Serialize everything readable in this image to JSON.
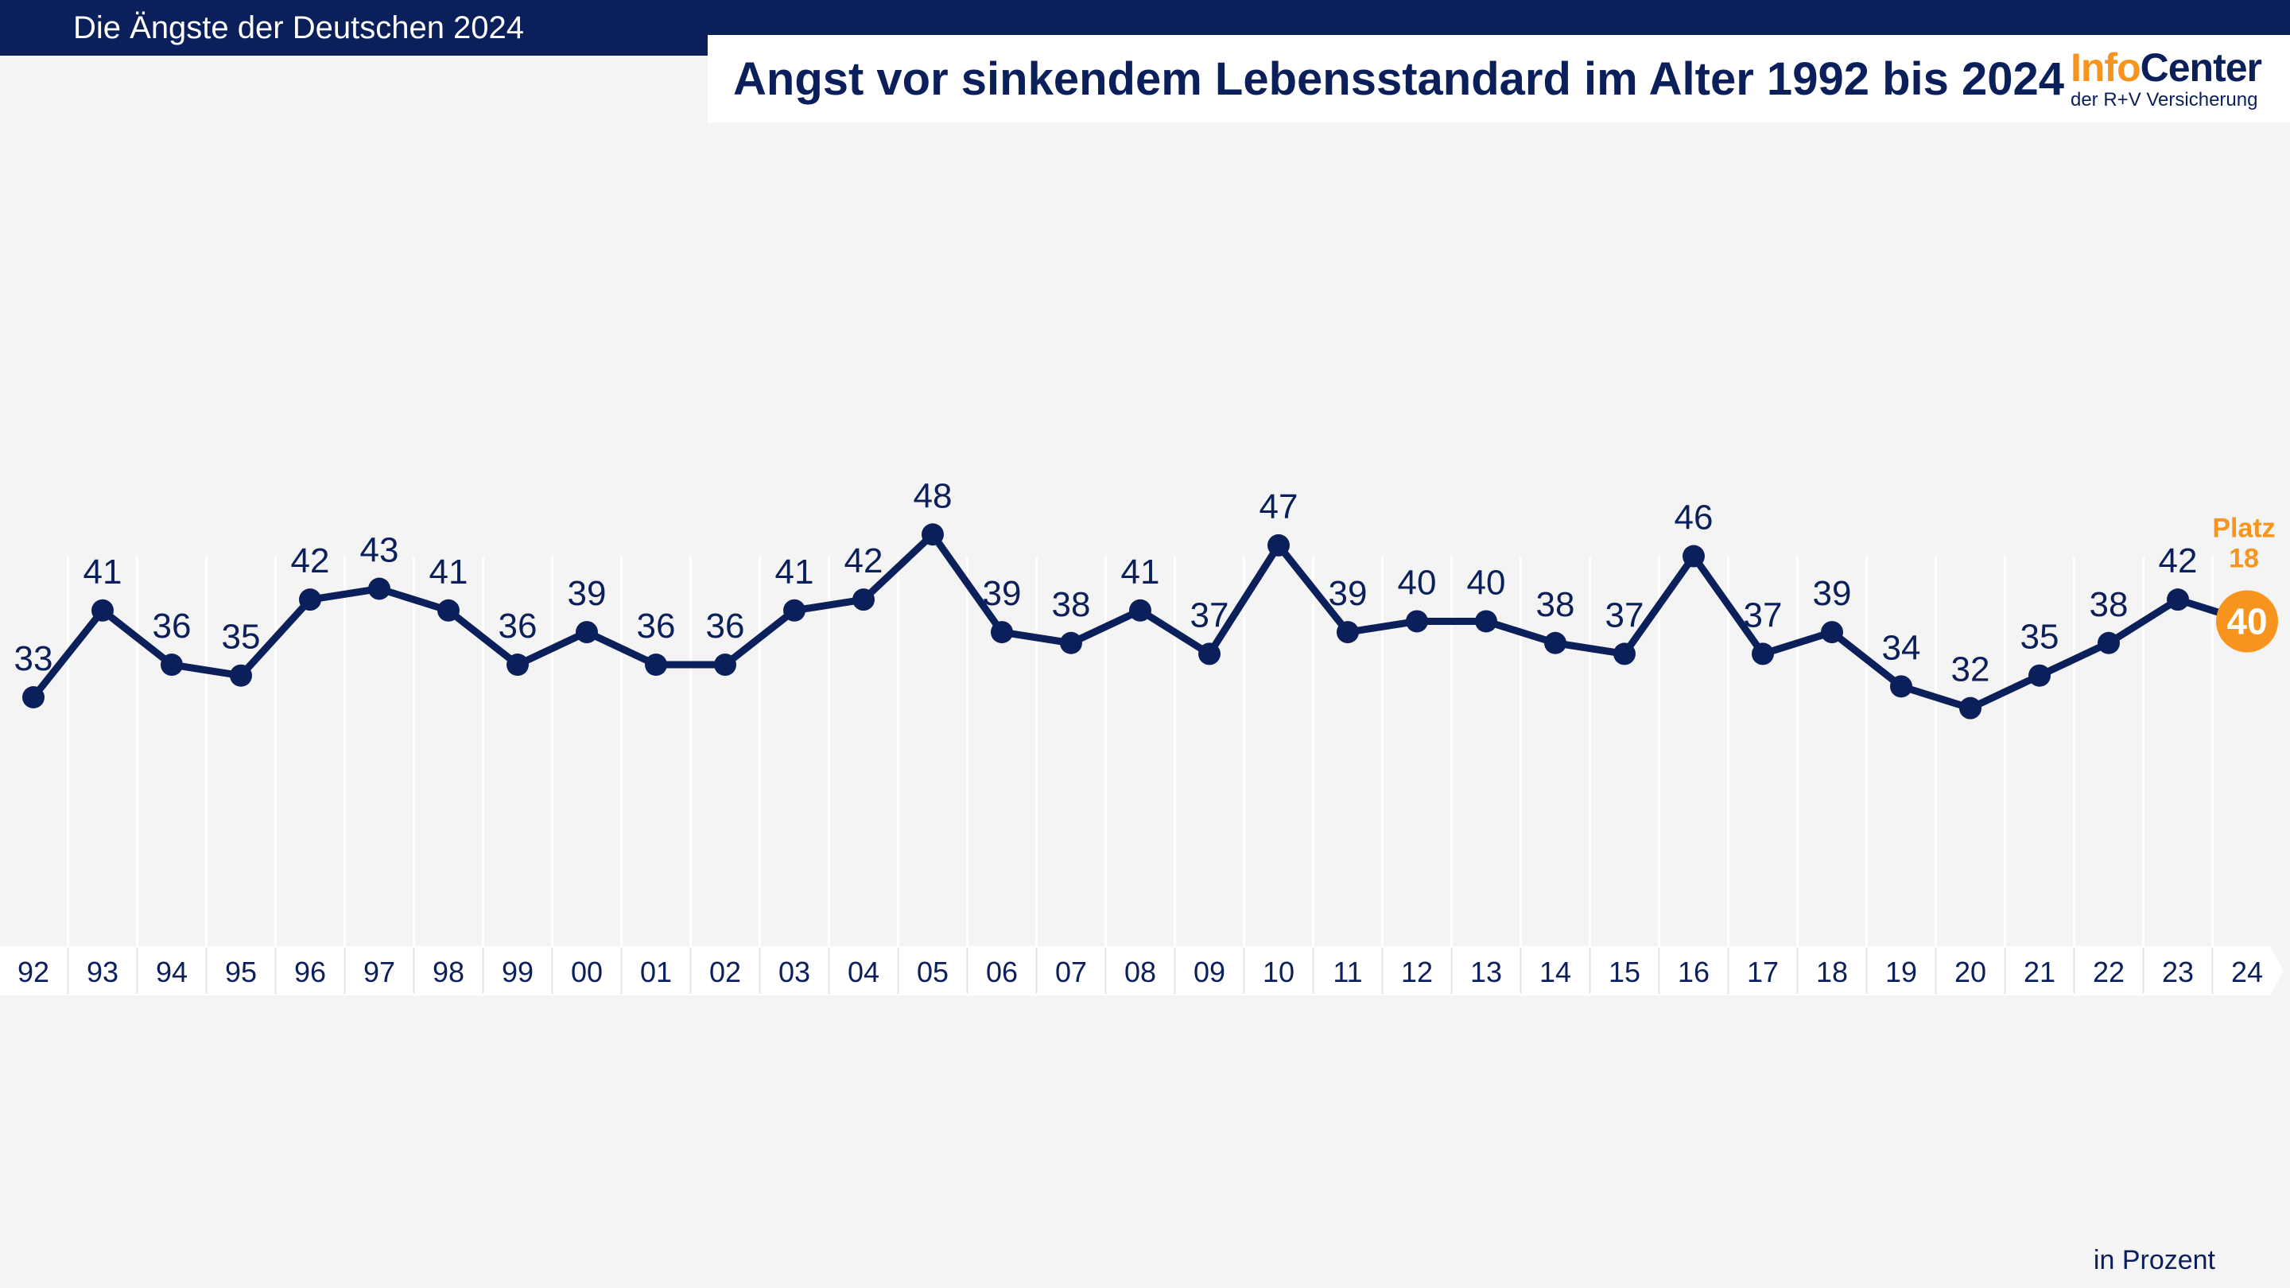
{
  "header": {
    "series_label": "Die Ängste der Deutschen 2024",
    "title": "Angst vor sinkendem Lebensstandard im Alter 1992 bis 2024"
  },
  "logo": {
    "part1": "Info",
    "part2": "Center",
    "subtitle": "der R+V Versicherung"
  },
  "footer": {
    "unit": "in Prozent"
  },
  "colors": {
    "navy": "#0b1f5a",
    "orange": "#f7941d",
    "background": "#f4f4f4"
  },
  "chart_data": {
    "type": "line",
    "title": "Angst vor sinkendem Lebensstandard im Alter 1992 bis 2024",
    "xlabel": "",
    "ylabel": "",
    "unit": "in Prozent",
    "categories": [
      "92",
      "93",
      "94",
      "95",
      "96",
      "97",
      "98",
      "99",
      "00",
      "01",
      "02",
      "03",
      "04",
      "05",
      "06",
      "07",
      "08",
      "09",
      "10",
      "11",
      "12",
      "13",
      "14",
      "15",
      "16",
      "17",
      "18",
      "19",
      "20",
      "21",
      "22",
      "23",
      "24"
    ],
    "values": [
      33,
      41,
      36,
      35,
      42,
      43,
      41,
      36,
      39,
      36,
      36,
      41,
      42,
      48,
      39,
      38,
      41,
      37,
      47,
      39,
      40,
      40,
      38,
      37,
      46,
      37,
      39,
      34,
      32,
      35,
      38,
      42,
      40
    ],
    "highlight": {
      "category": "24",
      "value": 40,
      "rank_label": "Platz",
      "rank": "18"
    },
    "grid": "vertical",
    "ylim": [
      0,
      100
    ]
  }
}
